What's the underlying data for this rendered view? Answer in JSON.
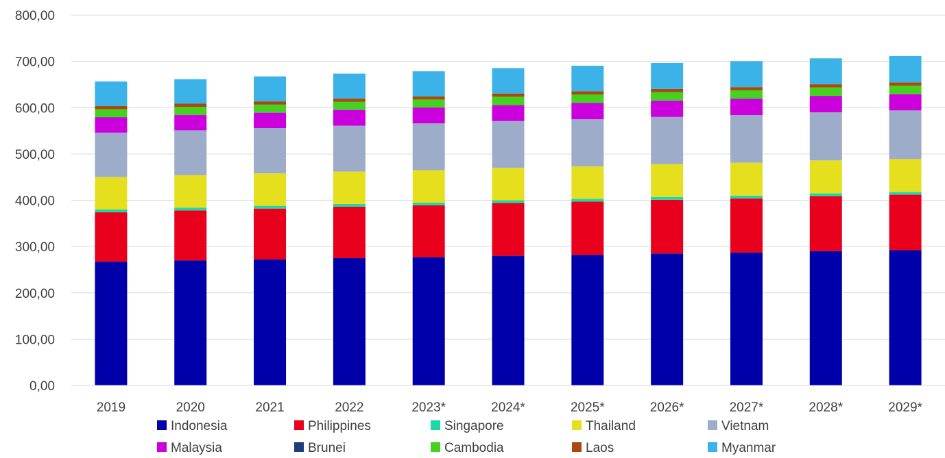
{
  "chart_data": {
    "type": "bar",
    "stacked": true,
    "title": "",
    "xlabel": "",
    "ylabel": "",
    "ylim": [
      0,
      800
    ],
    "y_ticks": [
      "0,00",
      "100,00",
      "200,00",
      "300,00",
      "400,00",
      "500,00",
      "600,00",
      "700,00",
      "800,00"
    ],
    "grid": true,
    "legend_position": "bottom",
    "categories": [
      "2019",
      "2020",
      "2021",
      "2022",
      "2023*",
      "2024*",
      "2025*",
      "2026*",
      "2027*",
      "2028*",
      "2029*"
    ],
    "series": [
      {
        "name": "Indonesia",
        "color": "#0000AA",
        "values": [
          267,
          270,
          272,
          275,
          277,
          280,
          282,
          285,
          287,
          290,
          292
        ]
      },
      {
        "name": "Philippines",
        "color": "#E8001C",
        "values": [
          107,
          108,
          110,
          111,
          112,
          114,
          115,
          116,
          117,
          119,
          120
        ]
      },
      {
        "name": "Singapore",
        "color": "#1FD8A8",
        "values": [
          6,
          6,
          6,
          6,
          6,
          6,
          6,
          6,
          6,
          6,
          6
        ]
      },
      {
        "name": "Thailand",
        "color": "#E5DF1E",
        "values": [
          70,
          70,
          70,
          70,
          70,
          70,
          70,
          71,
          71,
          71,
          71
        ]
      },
      {
        "name": "Vietnam",
        "color": "#9DACC9",
        "values": [
          96,
          97,
          98,
          99,
          101,
          101,
          102,
          102,
          103,
          104,
          105
        ]
      },
      {
        "name": "Malaysia",
        "color": "#CC00DD",
        "values": [
          33,
          33,
          33,
          34,
          34,
          34,
          35,
          35,
          35,
          35,
          35
        ]
      },
      {
        "name": "Brunei",
        "color": "#1F3D7A",
        "values": [
          0.5,
          0.5,
          0.5,
          0.5,
          0.5,
          0.5,
          0.5,
          0.5,
          0.5,
          0.5,
          0.5
        ]
      },
      {
        "name": "Cambodia",
        "color": "#44D11F",
        "values": [
          17,
          17,
          17,
          17,
          17,
          18,
          18,
          18,
          18,
          18,
          18
        ]
      },
      {
        "name": "Laos",
        "color": "#A84A10",
        "values": [
          7,
          7,
          7,
          7,
          7,
          7,
          7,
          7,
          7,
          7,
          7
        ]
      },
      {
        "name": "Myanmar",
        "color": "#3BB2E8",
        "values": [
          53,
          53,
          54,
          54,
          54,
          55,
          55,
          56,
          56,
          56,
          57
        ]
      }
    ]
  }
}
